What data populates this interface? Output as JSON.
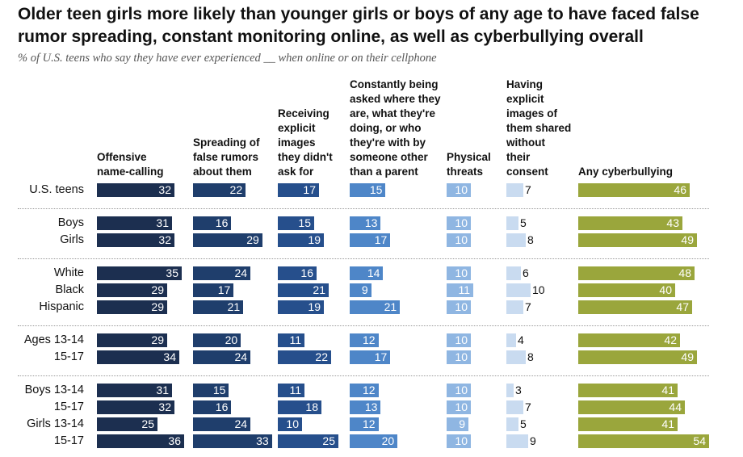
{
  "title": "Older teen girls more likely than younger girls or boys of any age to have faced false rumor spreading, constant monitoring online, as well as cyberbullying overall",
  "subtitle": "% of U.S. teens who say they have ever experienced __ when online or on their cellphone",
  "chart_data": {
    "type": "bar",
    "categories": [
      "U.S. teens",
      "Boys",
      "Girls",
      "White",
      "Black",
      "Hispanic",
      "Ages 13-14",
      "15-17",
      "Boys 13-14",
      "15-17",
      "Girls 13-14",
      "15-17"
    ],
    "series": [
      {
        "name": "Offensive\nname-calling",
        "color": "#1c2f50",
        "values": [
          32,
          31,
          32,
          35,
          29,
          29,
          29,
          34,
          31,
          32,
          25,
          36
        ]
      },
      {
        "name": "Spreading of\nfalse rumors\nabout them",
        "color": "#1f3e6c",
        "values": [
          22,
          16,
          29,
          24,
          17,
          21,
          20,
          24,
          15,
          16,
          24,
          33
        ]
      },
      {
        "name": "Receiving\nexplicit\nimages\nthey didn't\nask for",
        "color": "#264f8c",
        "values": [
          17,
          15,
          19,
          16,
          21,
          19,
          11,
          22,
          11,
          18,
          10,
          25
        ]
      },
      {
        "name": "Constantly being\nasked where they\nare, what they're\ndoing, or who\nthey're with by\nsomeone other\nthan a parent",
        "color": "#4e86c8",
        "values": [
          15,
          13,
          17,
          14,
          9,
          21,
          12,
          17,
          12,
          13,
          12,
          20
        ]
      },
      {
        "name": "Physical\nthreats",
        "color": "#8fb6e2",
        "values": [
          10,
          10,
          10,
          10,
          11,
          10,
          10,
          10,
          10,
          10,
          9,
          10
        ]
      },
      {
        "name": "Having\nexplicit\nimages of\nthem shared\nwithout\ntheir\nconsent",
        "color": "#c9dbf0",
        "values": [
          7,
          5,
          8,
          6,
          10,
          7,
          4,
          8,
          3,
          7,
          5,
          9
        ]
      },
      {
        "name": "Any cyberbullying",
        "color": "#9aa63c",
        "values": [
          46,
          43,
          49,
          48,
          40,
          47,
          42,
          49,
          41,
          44,
          41,
          54
        ]
      }
    ],
    "groups": [
      [
        0
      ],
      [
        1,
        2
      ],
      [
        3,
        4,
        5
      ],
      [
        6,
        7
      ],
      [
        8,
        9,
        10,
        11
      ]
    ]
  }
}
